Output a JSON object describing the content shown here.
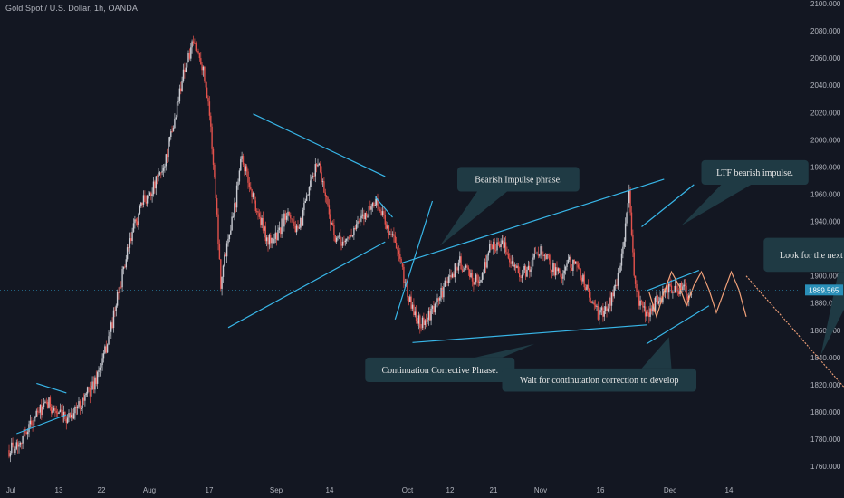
{
  "header": {
    "title": "Gold Spot / U.S. Dollar, 1h, OANDA"
  },
  "colors": {
    "background": "#131722",
    "up": "#c9cbd2",
    "down": "#e3524c",
    "trendline": "#38b6e8",
    "annotation_box": "#1f3a44",
    "price_label_bg": "#2a8fb8",
    "forecast_arrow": "#f3a27a"
  },
  "chart_data": {
    "type": "candlestick",
    "instrument": "Gold Spot / U.S. Dollar",
    "timeframe": "1h",
    "source": "OANDA",
    "ylim": [
      1755,
      2100
    ],
    "y_ticks": [
      "2100.000",
      "2080.000",
      "2060.000",
      "2040.000",
      "2020.000",
      "2000.000",
      "1980.000",
      "1960.000",
      "1940.000",
      "1920.000",
      "1900.000",
      "1880.000",
      "1860.000",
      "1840.000",
      "1820.000",
      "1800.000",
      "1780.000",
      "1760.000"
    ],
    "x_ticks": [
      "Jul",
      "13",
      "22",
      "Aug",
      "17",
      "Sep",
      "14",
      "Oct",
      "12",
      "21",
      "Nov",
      "16",
      "Dec",
      "14"
    ],
    "last_price": "1889.565",
    "price_path": [
      [
        0,
        1772
      ],
      [
        4,
        1778
      ],
      [
        8,
        1790
      ],
      [
        12,
        1800
      ],
      [
        16,
        1806
      ],
      [
        19,
        1800
      ],
      [
        22,
        1795
      ],
      [
        26,
        1800
      ],
      [
        30,
        1810
      ],
      [
        34,
        1820
      ],
      [
        38,
        1840
      ],
      [
        42,
        1870
      ],
      [
        46,
        1905
      ],
      [
        50,
        1935
      ],
      [
        54,
        1955
      ],
      [
        58,
        1965
      ],
      [
        62,
        1980
      ],
      [
        66,
        2010
      ],
      [
        70,
        2050
      ],
      [
        74,
        2070
      ],
      [
        77,
        2060
      ],
      [
        80,
        2030
      ],
      [
        83,
        1960
      ],
      [
        85,
        1895
      ],
      [
        88,
        1930
      ],
      [
        91,
        1955
      ],
      [
        93,
        1990
      ],
      [
        96,
        1970
      ],
      [
        100,
        1945
      ],
      [
        104,
        1925
      ],
      [
        108,
        1930
      ],
      [
        112,
        1950
      ],
      [
        116,
        1930
      ],
      [
        120,
        1960
      ],
      [
        124,
        1985
      ],
      [
        127,
        1960
      ],
      [
        131,
        1925
      ],
      [
        135,
        1925
      ],
      [
        139,
        1935
      ],
      [
        143,
        1945
      ],
      [
        147,
        1955
      ],
      [
        150,
        1945
      ],
      [
        152,
        1935
      ],
      [
        154,
        1930
      ],
      [
        157,
        1910
      ],
      [
        161,
        1880
      ],
      [
        165,
        1865
      ],
      [
        169,
        1870
      ],
      [
        173,
        1885
      ],
      [
        177,
        1900
      ],
      [
        181,
        1910
      ],
      [
        185,
        1900
      ],
      [
        189,
        1895
      ],
      [
        193,
        1920
      ],
      [
        197,
        1925
      ],
      [
        201,
        1915
      ],
      [
        205,
        1900
      ],
      [
        209,
        1905
      ],
      [
        213,
        1920
      ],
      [
        217,
        1910
      ],
      [
        221,
        1900
      ],
      [
        225,
        1910
      ],
      [
        229,
        1905
      ],
      [
        233,
        1885
      ],
      [
        237,
        1870
      ],
      [
        241,
        1880
      ],
      [
        245,
        1900
      ],
      [
        249,
        1960
      ],
      [
        251,
        1900
      ],
      [
        253,
        1880
      ],
      [
        256,
        1870
      ],
      [
        259,
        1878
      ],
      [
        262,
        1885
      ],
      [
        266,
        1892
      ],
      [
        270,
        1890
      ],
      [
        274,
        1885
      ]
    ],
    "trendlines": [
      {
        "from": [
          11,
          1821
        ],
        "to": [
          23,
          1814
        ]
      },
      {
        "from": [
          3,
          1784
        ],
        "to": [
          23,
          1798
        ]
      },
      {
        "from": [
          98,
          2019
        ],
        "to": [
          151,
          1973
        ]
      },
      {
        "from": [
          88,
          1862
        ],
        "to": [
          151,
          1925
        ]
      },
      {
        "from": [
          147,
          1958
        ],
        "to": [
          154,
          1943
        ]
      },
      {
        "from": [
          155,
          1868
        ],
        "to": [
          170,
          1955
        ]
      },
      {
        "from": [
          157,
          1909
        ],
        "to": [
          263,
          1971
        ]
      },
      {
        "from": [
          162,
          1851
        ],
        "to": [
          256,
          1864
        ]
      },
      {
        "from": [
          254,
          1936
        ],
        "to": [
          275,
          1967
        ]
      },
      {
        "from": [
          256,
          1889
        ],
        "to": [
          277,
          1904
        ]
      },
      {
        "from": [
          256,
          1850
        ],
        "to": [
          281,
          1878
        ]
      }
    ],
    "forecast_path": {
      "wave": [
        [
          257,
          1888
        ],
        [
          260,
          1870
        ],
        [
          263,
          1888
        ],
        [
          266,
          1903
        ],
        [
          269,
          1893
        ],
        [
          272,
          1878
        ],
        [
          275,
          1893
        ],
        [
          278,
          1903
        ],
        [
          281,
          1890
        ],
        [
          284,
          1873
        ],
        [
          287,
          1888
        ],
        [
          290,
          1903
        ],
        [
          293,
          1890
        ],
        [
          296,
          1870
        ]
      ],
      "arrow": [
        [
          296,
          1900
        ],
        [
          345,
          1798
        ]
      ]
    },
    "annotations": [
      {
        "id": "bearish-impulse",
        "text": "Bearish Impulse phrase.",
        "box_time": [
          180,
          229
        ],
        "box_price": [
          1980,
          1962
        ],
        "pointer": [
          [
            188,
            1962
          ],
          [
            200,
            1962
          ],
          [
            173,
            1922
          ]
        ]
      },
      {
        "id": "ltf-bearish",
        "text": "LTF bearish impulse.",
        "box_time": [
          278,
          321
        ],
        "box_price": [
          1985,
          1967
        ],
        "pointer": [
          [
            286,
            1967
          ],
          [
            298,
            1967
          ],
          [
            270,
            1937
          ]
        ]
      },
      {
        "id": "next-bearish",
        "text": "Look for the next bearish impulse.",
        "box_time": [
          303,
          366
        ],
        "box_price": [
          1928,
          1903
        ],
        "pointer": [
          [
            333,
            1903
          ],
          [
            343,
            1903
          ],
          [
            326,
            1842
          ]
        ]
      },
      {
        "id": "continuation-corrective",
        "text": "Continuation Corrective Phrase.",
        "box_time": [
          143,
          203
        ],
        "box_price": [
          1840,
          1822
        ],
        "pointer": [
          [
            187,
            1840
          ],
          [
            198,
            1840
          ],
          [
            211,
            1850
          ]
        ]
      },
      {
        "id": "wait-continuation",
        "text": "Wait for continutation correction to develop",
        "box_time": [
          198,
          276
        ],
        "box_price": [
          1832,
          1815
        ],
        "pointer": [
          [
            254,
            1832
          ],
          [
            266,
            1832
          ],
          [
            265,
            1855
          ]
        ]
      }
    ]
  }
}
